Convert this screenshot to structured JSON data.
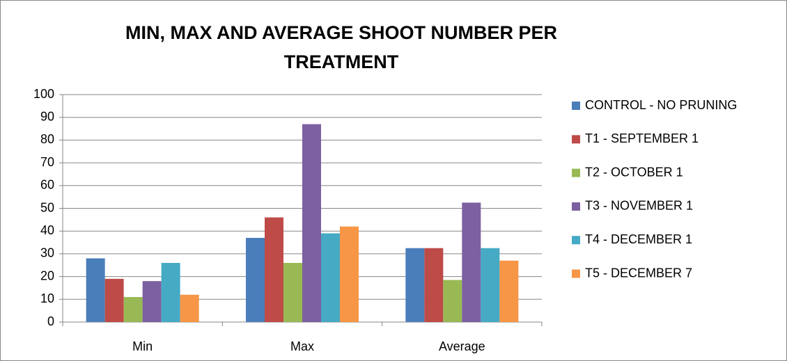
{
  "chart_data": {
    "type": "bar",
    "title": "MIN, MAX AND AVERAGE SHOOT NUMBER PER TREATMENT",
    "categories": [
      "Min",
      "Max",
      "Average"
    ],
    "series": [
      {
        "name": "CONTROL - NO PRUNING",
        "color": "#4a7ebb",
        "values": [
          28,
          37,
          32.5
        ]
      },
      {
        "name": "T1 - SEPTEMBER 1",
        "color": "#be4b48",
        "values": [
          19,
          46,
          32.5
        ]
      },
      {
        "name": "T2 - OCTOBER 1",
        "color": "#98b954",
        "values": [
          11,
          26,
          18.5
        ]
      },
      {
        "name": "T3 - NOVEMBER 1",
        "color": "#7d60a0",
        "values": [
          18,
          87,
          52.5
        ]
      },
      {
        "name": "T4 - DECEMBER 1",
        "color": "#46aac5",
        "values": [
          26,
          39,
          32.5
        ]
      },
      {
        "name": "T5 - DECEMBER 7",
        "color": "#f79646",
        "values": [
          12,
          42,
          27
        ]
      }
    ],
    "ylim": [
      0,
      100
    ],
    "yticks": [
      0,
      10,
      20,
      30,
      40,
      50,
      60,
      70,
      80,
      90,
      100
    ],
    "grid": true,
    "legend": "right"
  }
}
